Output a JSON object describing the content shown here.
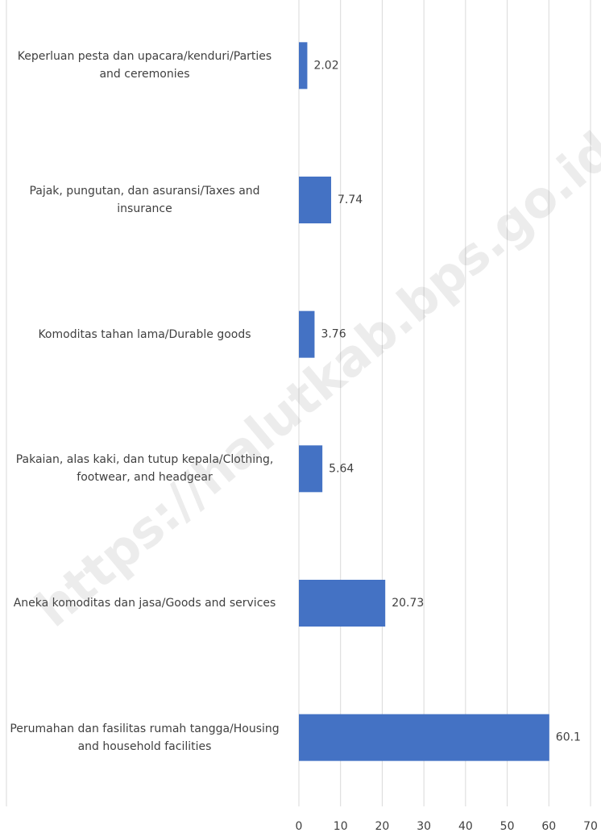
{
  "chart_data": {
    "type": "hbar",
    "categories": [
      "Keperluan pesta dan upacara/kenduri/Parties and ceremonies",
      "Pajak, pungutan, dan asuransi/Taxes and insurance",
      "Komoditas tahan lama/Durable goods",
      "Pakaian, alas kaki, dan tutup kepala/Clothing, footwear, and headgear",
      "Aneka komoditas dan jasa/Goods and services",
      "Perumahan dan fasilitas rumah tangga/Housing and household facilities"
    ],
    "values": [
      2.02,
      7.74,
      3.76,
      5.64,
      20.73,
      60.1
    ],
    "color": "#4472c4",
    "xlim": [
      0,
      70
    ],
    "xticks": [
      0,
      10,
      20,
      30,
      40,
      50,
      60,
      70
    ],
    "grid": true,
    "watermark": "https://halutkab.bps.go.id"
  }
}
